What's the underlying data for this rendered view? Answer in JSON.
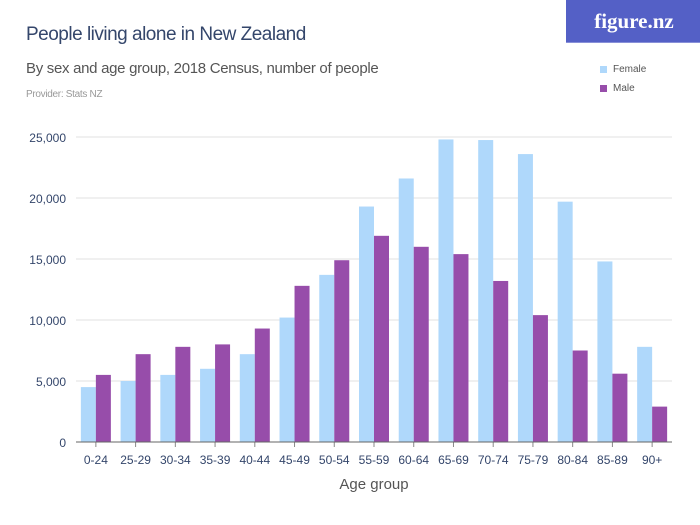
{
  "header": {
    "title": "People living alone in New Zealand",
    "subtitle": "By sex and age group, 2018 Census, number of people",
    "provider": "Provider: Stats NZ",
    "logo": "figure.nz"
  },
  "chart_data": {
    "type": "bar",
    "title": "People living alone in New Zealand",
    "subtitle": "By sex and age group, 2018 Census, number of people",
    "xlabel": "Age group",
    "ylabel": "",
    "ylim": [
      0,
      25000
    ],
    "yticks": [
      0,
      5000,
      10000,
      15000,
      20000,
      25000
    ],
    "ytick_labels": [
      "0",
      "5,000",
      "10,000",
      "15,000",
      "20,000",
      "25,000"
    ],
    "grid": true,
    "legend": "top-right",
    "categories": [
      "0-24",
      "25-29",
      "30-34",
      "35-39",
      "40-44",
      "45-49",
      "50-54",
      "55-59",
      "60-64",
      "65-69",
      "70-74",
      "75-79",
      "80-84",
      "85-89",
      "90+"
    ],
    "series": [
      {
        "name": "Female",
        "color": "#afd8fb",
        "values": [
          4500,
          5000,
          5500,
          6000,
          7200,
          10200,
          13700,
          19300,
          21600,
          24800,
          24750,
          23600,
          19700,
          14800,
          7800
        ]
      },
      {
        "name": "Male",
        "color": "#974daa",
        "values": [
          5500,
          7200,
          7800,
          8000,
          9300,
          12800,
          14900,
          16900,
          16000,
          15400,
          13200,
          10400,
          7500,
          5600,
          2900
        ]
      }
    ]
  }
}
